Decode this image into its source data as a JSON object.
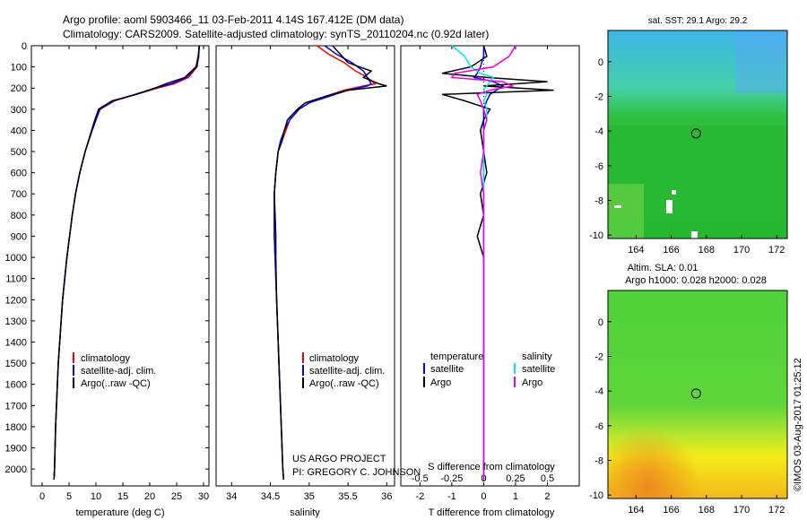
{
  "header": {
    "line1": "Argo profile: aoml 5903466_11 03-Feb-2011 4.14S 167.412E (DM data)",
    "line2": "Climatology: CARS2009. Satellite-adjusted climatology: synTS_20110204.nc (0.92d later)"
  },
  "colors": {
    "climatology": "#ff0000",
    "satellite": "#0000ff",
    "argo": "#000000",
    "sat_salinity": "#00e5ee",
    "argo_salinity": "#ee00ee"
  },
  "chart_data": [
    {
      "type": "line",
      "id": "temperature",
      "xlabel": "temperature (deg C)",
      "xlim": [
        -2,
        31
      ],
      "xticks": [
        "0",
        "5",
        "10",
        "15",
        "20",
        "25",
        "30"
      ],
      "xtick_values": [
        0,
        5,
        10,
        15,
        20,
        25,
        30
      ],
      "ylim": [
        2080,
        0
      ],
      "yticks": [
        "0",
        "100",
        "200",
        "300",
        "400",
        "500",
        "600",
        "700",
        "800",
        "900",
        "1000",
        "1100",
        "1200",
        "1300",
        "1400",
        "1500",
        "1600",
        "1700",
        "1800",
        "1900",
        "2000"
      ],
      "ytick_values": [
        0,
        100,
        200,
        300,
        400,
        500,
        600,
        700,
        800,
        900,
        1000,
        1100,
        1200,
        1300,
        1400,
        1500,
        1600,
        1700,
        1800,
        1900,
        2000
      ],
      "legend": [
        "climatology",
        "satellite-adj. clim.",
        "Argo(..raw -QC)"
      ],
      "depth": [
        0,
        50,
        100,
        150,
        180,
        200,
        230,
        260,
        300,
        350,
        400,
        500,
        600,
        700,
        800,
        1000,
        1200,
        1500,
        1800,
        2000,
        2050
      ],
      "series": [
        {
          "name": "climatology",
          "values": [
            29.2,
            29.1,
            28.8,
            27.2,
            24.5,
            21.5,
            17.5,
            13.5,
            10.8,
            10.0,
            9.3,
            8.0,
            7.0,
            6.2,
            5.6,
            4.6,
            3.8,
            3.0,
            2.5,
            2.3,
            2.2
          ]
        },
        {
          "name": "satellite-adj. clim.",
          "values": [
            29.2,
            29.1,
            28.7,
            26.8,
            24.0,
            21.0,
            17.2,
            13.3,
            10.7,
            10.0,
            9.3,
            8.0,
            7.0,
            6.2,
            5.6,
            4.6,
            3.8,
            3.0,
            2.5,
            2.3,
            2.2
          ]
        },
        {
          "name": "Argo(..raw -QC)",
          "values": [
            29.2,
            29.0,
            28.6,
            26.5,
            23.0,
            21.0,
            17.5,
            13.0,
            10.5,
            9.8,
            9.2,
            8.0,
            7.0,
            6.2,
            5.6,
            4.6,
            3.8,
            3.0,
            2.5,
            2.3,
            2.2
          ]
        }
      ]
    },
    {
      "type": "line",
      "id": "salinity",
      "xlabel": "salinity",
      "xlim": [
        33.8,
        36.1
      ],
      "xticks": [
        "34",
        "34.5",
        "35",
        "35.5",
        "36"
      ],
      "xtick_values": [
        34,
        34.5,
        35,
        35.5,
        36
      ],
      "ylim": [
        2080,
        0
      ],
      "legend": [
        "climatology",
        "satellite-adj. clim.",
        "Argo(..raw -QC)"
      ],
      "annotation": [
        "US ARGO PROJECT",
        "PI: GREGORY C. JOHNSON"
      ],
      "depth": [
        0,
        40,
        80,
        120,
        150,
        180,
        190,
        210,
        240,
        270,
        300,
        350,
        400,
        450,
        500,
        600,
        700,
        800,
        900,
        1000,
        1200,
        1500,
        1800,
        2000,
        2050
      ],
      "series": [
        {
          "name": "climatology",
          "values": [
            35.1,
            35.25,
            35.45,
            35.6,
            35.75,
            35.85,
            35.7,
            35.45,
            35.2,
            35.0,
            34.87,
            34.75,
            34.7,
            34.65,
            34.6,
            34.57,
            34.55,
            34.55,
            34.55,
            34.56,
            34.58,
            34.61,
            34.64,
            34.66,
            34.67
          ]
        },
        {
          "name": "satellite-adj. clim.",
          "values": [
            35.2,
            35.35,
            35.55,
            35.7,
            35.75,
            35.8,
            35.75,
            35.5,
            35.25,
            35.0,
            34.87,
            34.75,
            34.68,
            34.63,
            34.6,
            34.57,
            34.55,
            34.55,
            34.55,
            34.56,
            34.58,
            34.61,
            34.64,
            34.66,
            34.67
          ]
        },
        {
          "name": "Argo(..raw -QC)",
          "values": [
            35.3,
            35.4,
            35.5,
            35.8,
            35.7,
            35.9,
            36.0,
            35.5,
            35.2,
            34.95,
            34.85,
            34.72,
            34.68,
            34.65,
            34.6,
            34.57,
            34.55,
            34.56,
            34.57,
            34.57,
            34.58,
            34.61,
            34.64,
            34.66,
            34.67
          ]
        }
      ]
    },
    {
      "type": "line",
      "id": "differences",
      "xlabel": "T difference from climatology",
      "xlabel_top": "S difference from climatology",
      "xlim": [
        -2.6,
        3.0
      ],
      "xticks": [
        "-2",
        "-1",
        "0",
        "1",
        "2"
      ],
      "xtick_values": [
        -2,
        -1,
        0,
        1,
        2
      ],
      "xticks_s": [
        "-0.5",
        "-0.25",
        "0",
        "0.25",
        "0.5"
      ],
      "xtick_s_values": [
        -2,
        -1,
        0,
        1,
        2
      ],
      "ylim": [
        2080,
        0
      ],
      "legend_titles": [
        "temperature",
        "salinity"
      ],
      "legend": [
        "satellite",
        "Argo",
        "satellite",
        "Argo"
      ],
      "depth": [
        0,
        50,
        100,
        130,
        150,
        170,
        190,
        210,
        230,
        260,
        300,
        350,
        400,
        500,
        600,
        700,
        800,
        900,
        1000,
        1200,
        1500,
        1800,
        2000,
        2050
      ],
      "series": [
        {
          "name": "satellite (temperature)",
          "values": [
            0.0,
            0.0,
            -0.1,
            -0.2,
            -0.3,
            0.3,
            0.6,
            0.4,
            0.2,
            0.1,
            0.0,
            0.0,
            0.0,
            0.0,
            0.0,
            0.0,
            0.0,
            0.0,
            0.0,
            0.0,
            0.0,
            0.0,
            0.0,
            0.0
          ]
        },
        {
          "name": "Argo (temperature)",
          "values": [
            0.0,
            0.1,
            -0.4,
            -1.3,
            0.1,
            2.0,
            0.0,
            2.2,
            -1.3,
            -0.6,
            0.2,
            0.0,
            -0.1,
            0.0,
            0.1,
            -0.1,
            0.0,
            -0.2,
            0.0,
            0.0,
            0.0,
            0.0,
            0.0,
            0.0
          ]
        },
        {
          "name": "satellite (salinity)",
          "values": [
            -1.0,
            -0.6,
            -0.4,
            -0.1,
            0.3,
            0.2,
            0.1,
            0.0,
            0.1,
            0.0,
            0.1,
            0.1,
            0.0,
            0.0,
            0.0,
            0.0,
            0.0,
            0.0,
            0.0,
            0.0,
            0.0,
            0.0,
            0.0,
            0.0
          ]
        },
        {
          "name": "Argo (salinity)",
          "values": [
            1.0,
            0.8,
            0.3,
            -0.9,
            -1.0,
            0.6,
            0.9,
            0.2,
            -0.2,
            -0.1,
            0.0,
            0.1,
            0.0,
            0.0,
            -0.1,
            0.0,
            0.0,
            0.0,
            0.0,
            0.0,
            0.0,
            0.0,
            0.0,
            0.0
          ]
        }
      ]
    },
    {
      "type": "heatmap",
      "id": "sst-map",
      "title": "sat. SST: 29.1  Argo: 29.2",
      "xticks": [
        "164",
        "166",
        "168",
        "170",
        "172"
      ],
      "xtick_values": [
        164,
        166,
        168,
        170,
        172
      ],
      "yticks": [
        "0",
        "-2",
        "-4",
        "-6",
        "-8",
        "-10"
      ],
      "ytick_values": [
        0,
        -2,
        -4,
        -6,
        -8,
        -10
      ],
      "xlim": [
        162.4,
        172.6
      ],
      "ylim": [
        -10.2,
        1.8
      ],
      "marker": {
        "lon": 167.412,
        "lat": -4.14
      }
    },
    {
      "type": "heatmap",
      "id": "sla-map",
      "title": "Altim. SLA: 0.01",
      "subtitle": "Argo h1000: 0.028  h2000: 0.028",
      "xticks": [
        "164",
        "166",
        "168",
        "170",
        "172"
      ],
      "xtick_values": [
        164,
        166,
        168,
        170,
        172
      ],
      "yticks": [
        "0",
        "-2",
        "-4",
        "-6",
        "-8",
        "-10"
      ],
      "ytick_values": [
        0,
        -2,
        -4,
        -6,
        -8,
        -10
      ],
      "xlim": [
        162.4,
        172.6
      ],
      "ylim": [
        -10.2,
        1.8
      ],
      "marker": {
        "lon": 167.412,
        "lat": -4.14
      }
    }
  ],
  "footer": {
    "credit": "©IMOS 03-Aug-2017 01:25:12"
  }
}
